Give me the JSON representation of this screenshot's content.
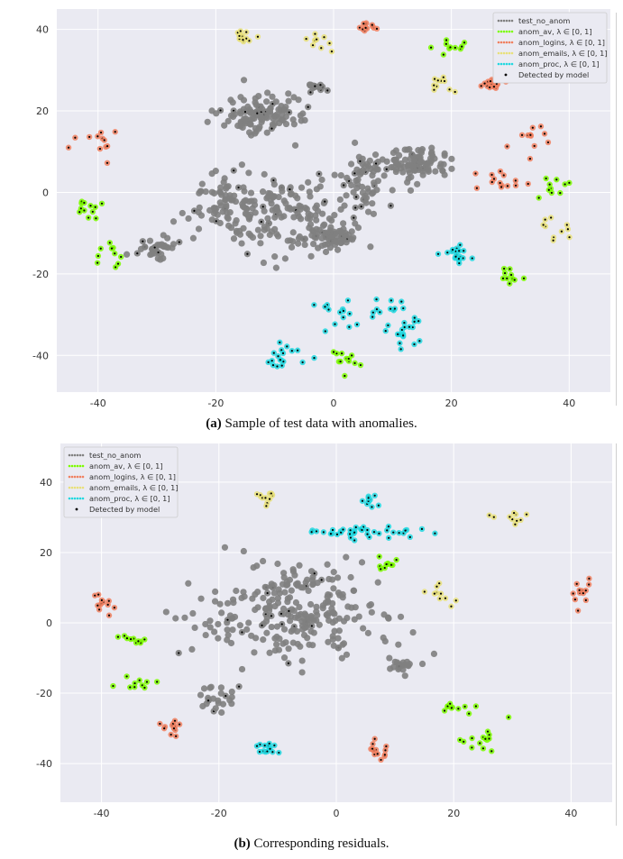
{
  "figure": {
    "panel_a": {
      "caption_label": "(a)",
      "caption_text": " Sample of test data with anomalies."
    },
    "panel_b": {
      "caption_label": "(b)",
      "caption_text": " Corresponding residuals."
    }
  },
  "chart_data": [
    {
      "type": "scatter",
      "title": "",
      "xlabel": "",
      "ylabel": "",
      "xlim": [
        -47,
        47
      ],
      "ylim": [
        -49,
        45
      ],
      "xticks": [
        -40,
        -20,
        0,
        20,
        40
      ],
      "yticks": [
        -40,
        -20,
        0,
        20,
        40
      ],
      "grid": true,
      "legend_position": "top-right",
      "legend": [
        {
          "label": "test_no_anom",
          "color": "#808080",
          "marker": "dots"
        },
        {
          "label": "anom_av, λ ∈ [0, 1]",
          "color": "#7CFC00",
          "marker": "dots"
        },
        {
          "label": "anom_logins, λ ∈ [0, 1]",
          "color": "#F08060",
          "marker": "dots"
        },
        {
          "label": "anom_emails, λ ∈ [0, 1]",
          "color": "#E8E07A",
          "marker": "dots"
        },
        {
          "label": "anom_proc, λ ∈ [0, 1]",
          "color": "#22D8E0",
          "marker": "dots"
        },
        {
          "label": "Detected by model",
          "color": "#000000",
          "marker": "point"
        }
      ],
      "clusters": [
        {
          "series": "test_no_anom",
          "x": -13,
          "y": 19,
          "rx": 6,
          "ry": 4.5,
          "n": 120
        },
        {
          "series": "test_no_anom",
          "x": 14,
          "y": 7,
          "rx": 5,
          "ry": 3.5,
          "n": 100
        },
        {
          "series": "test_no_anom",
          "x": 0,
          "y": -11,
          "rx": 3,
          "ry": 2.5,
          "n": 60
        },
        {
          "series": "test_no_anom",
          "x": -8,
          "y": -6,
          "rx": 10,
          "ry": 8,
          "n": 150
        },
        {
          "series": "test_no_anom",
          "x": -18,
          "y": -2,
          "rx": 7,
          "ry": 6,
          "n": 70
        },
        {
          "series": "test_no_anom",
          "x": -30,
          "y": -14,
          "rx": 3,
          "ry": 2.5,
          "n": 35
        },
        {
          "series": "test_no_anom",
          "x": 5,
          "y": 3,
          "rx": 5,
          "ry": 6,
          "n": 60
        },
        {
          "series": "test_no_anom",
          "x": -3,
          "y": 26,
          "rx": 1.5,
          "ry": 1.2,
          "n": 14
        },
        {
          "series": "anom_proc, λ ∈ [0, 1]",
          "x": 21,
          "y": -15,
          "rx": 2,
          "ry": 2,
          "n": 20
        },
        {
          "series": "anom_proc, λ ∈ [0, 1]",
          "x": -9,
          "y": -40,
          "rx": 4,
          "ry": 3,
          "n": 18
        },
        {
          "series": "anom_proc, λ ∈ [0, 1]",
          "x": 12,
          "y": -34,
          "rx": 4,
          "ry": 5,
          "n": 20
        },
        {
          "series": "anom_proc, λ ∈ [0, 1]",
          "x": 5,
          "y": -30,
          "rx": 7,
          "ry": 5,
          "n": 24
        },
        {
          "series": "anom_logins, λ ∈ [0, 1]",
          "x": 27,
          "y": 27,
          "rx": 2.5,
          "ry": 1.5,
          "n": 24
        },
        {
          "series": "anom_logins, λ ∈ [0, 1]",
          "x": 6,
          "y": 40,
          "rx": 2,
          "ry": 1.5,
          "n": 12
        },
        {
          "series": "anom_logins, λ ∈ [0, 1]",
          "x": 29,
          "y": 3,
          "rx": 4,
          "ry": 3,
          "n": 14
        },
        {
          "series": "anom_logins, λ ∈ [0, 1]",
          "x": -40,
          "y": 12,
          "rx": 3,
          "ry": 3,
          "n": 12
        },
        {
          "series": "anom_logins, λ ∈ [0, 1]",
          "x": 33,
          "y": 13,
          "rx": 4,
          "ry": 4,
          "n": 12
        },
        {
          "series": "anom_emails, λ ∈ [0, 1]",
          "x": -15,
          "y": 38,
          "rx": 2,
          "ry": 1.5,
          "n": 14
        },
        {
          "series": "anom_emails, λ ∈ [0, 1]",
          "x": 19,
          "y": 27,
          "rx": 3,
          "ry": 2,
          "n": 10
        },
        {
          "series": "anom_emails, λ ∈ [0, 1]",
          "x": 37,
          "y": -8,
          "rx": 4,
          "ry": 2.5,
          "n": 10
        },
        {
          "series": "anom_emails, λ ∈ [0, 1]",
          "x": -3,
          "y": 37,
          "rx": 3,
          "ry": 3,
          "n": 10
        },
        {
          "series": "anom_av, λ ∈ [0, 1]",
          "x": 2,
          "y": -41,
          "rx": 2,
          "ry": 3,
          "n": 12
        },
        {
          "series": "anom_av, λ ∈ [0, 1]",
          "x": 30,
          "y": -21,
          "rx": 2,
          "ry": 1.5,
          "n": 10
        },
        {
          "series": "anom_av, λ ∈ [0, 1]",
          "x": -42,
          "y": -4,
          "rx": 2.5,
          "ry": 2.5,
          "n": 12
        },
        {
          "series": "anom_av, λ ∈ [0, 1]",
          "x": 38,
          "y": 1,
          "rx": 3,
          "ry": 2,
          "n": 10
        },
        {
          "series": "anom_av, λ ∈ [0, 1]",
          "x": -38,
          "y": -15,
          "rx": 3,
          "ry": 3,
          "n": 10
        },
        {
          "series": "anom_av, λ ∈ [0, 1]",
          "x": 20,
          "y": 36,
          "rx": 3,
          "ry": 2,
          "n": 10
        }
      ]
    },
    {
      "type": "scatter",
      "title": "",
      "xlabel": "",
      "ylabel": "",
      "xlim": [
        -47,
        47
      ],
      "ylim": [
        -51,
        51
      ],
      "xticks": [
        -40,
        -20,
        0,
        20,
        40
      ],
      "yticks": [
        -40,
        -20,
        0,
        20,
        40
      ],
      "grid": true,
      "legend_position": "top-left",
      "legend": [
        {
          "label": "test_no_anom",
          "color": "#808080",
          "marker": "dots"
        },
        {
          "label": "anom_av, λ ∈ [0, 1]",
          "color": "#7CFC00",
          "marker": "dots"
        },
        {
          "label": "anom_logins, λ ∈ [0, 1]",
          "color": "#F08060",
          "marker": "dots"
        },
        {
          "label": "anom_emails, λ ∈ [0, 1]",
          "color": "#E8E07A",
          "marker": "dots"
        },
        {
          "label": "anom_proc, λ ∈ [0, 1]",
          "color": "#22D8E0",
          "marker": "dots"
        },
        {
          "label": "Detected by model",
          "color": "#000000",
          "marker": "point"
        }
      ],
      "clusters": [
        {
          "series": "test_no_anom",
          "x": -7,
          "y": 2,
          "rx": 14,
          "ry": 12,
          "n": 260
        },
        {
          "series": "test_no_anom",
          "x": -20,
          "y": -21,
          "rx": 3,
          "ry": 4,
          "n": 24
        },
        {
          "series": "test_no_anom",
          "x": 11,
          "y": -12,
          "rx": 2,
          "ry": 2,
          "n": 18
        },
        {
          "series": "anom_proc, λ ∈ [0, 1]",
          "x": 5,
          "y": 26,
          "rx": 10,
          "ry": 2,
          "n": 40
        },
        {
          "series": "anom_proc, λ ∈ [0, 1]",
          "x": -12,
          "y": -36,
          "rx": 2,
          "ry": 2,
          "n": 14
        },
        {
          "series": "anom_proc, λ ∈ [0, 1]",
          "x": 6,
          "y": 35,
          "rx": 2,
          "ry": 2,
          "n": 10
        },
        {
          "series": "anom_logins, λ ∈ [0, 1]",
          "x": -28,
          "y": -29,
          "rx": 2,
          "ry": 2,
          "n": 12
        },
        {
          "series": "anom_logins, λ ∈ [0, 1]",
          "x": 7,
          "y": -36,
          "rx": 2,
          "ry": 2,
          "n": 14
        },
        {
          "series": "anom_logins, λ ∈ [0, 1]",
          "x": -40,
          "y": 5,
          "rx": 2,
          "ry": 4,
          "n": 12
        },
        {
          "series": "anom_logins, λ ∈ [0, 1]",
          "x": 42,
          "y": 8,
          "rx": 2,
          "ry": 5,
          "n": 12
        },
        {
          "series": "anom_emails, λ ∈ [0, 1]",
          "x": -12,
          "y": 36,
          "rx": 2,
          "ry": 2,
          "n": 12
        },
        {
          "series": "anom_emails, λ ∈ [0, 1]",
          "x": 30,
          "y": 30,
          "rx": 3,
          "ry": 2,
          "n": 10
        },
        {
          "series": "anom_emails, λ ∈ [0, 1]",
          "x": 18,
          "y": 8,
          "rx": 3,
          "ry": 4,
          "n": 10
        },
        {
          "series": "anom_av, λ ∈ [0, 1]",
          "x": 25,
          "y": -33,
          "rx": 3,
          "ry": 3,
          "n": 14
        },
        {
          "series": "anom_av, λ ∈ [0, 1]",
          "x": -34,
          "y": -5,
          "rx": 2,
          "ry": 2,
          "n": 10
        },
        {
          "series": "anom_av, λ ∈ [0, 1]",
          "x": -34,
          "y": -17,
          "rx": 3,
          "ry": 1.5,
          "n": 10
        },
        {
          "series": "anom_av, λ ∈ [0, 1]",
          "x": 9,
          "y": 16,
          "rx": 2,
          "ry": 1.5,
          "n": 10
        },
        {
          "series": "anom_av, λ ∈ [0, 1]",
          "x": 20,
          "y": -24,
          "rx": 3,
          "ry": 1.5,
          "n": 10
        }
      ]
    }
  ]
}
